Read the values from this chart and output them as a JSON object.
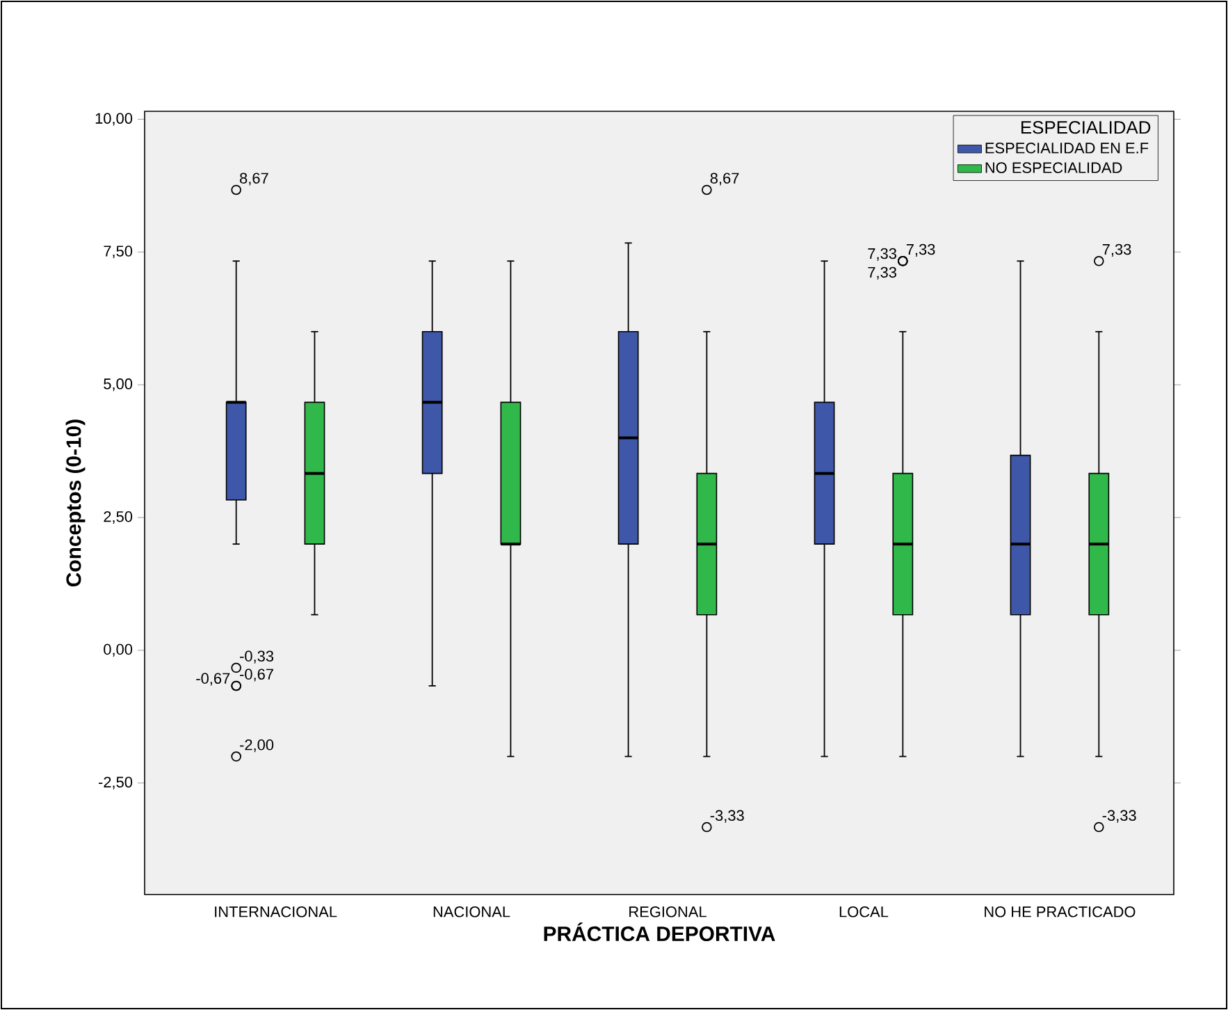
{
  "chart_data": {
    "type": "box",
    "xlabel": "PRÁCTICA DEPORTIVA",
    "ylabel": "Conceptos (0-10)",
    "legend_title": "ESPECIALIDAD",
    "legend": "top right",
    "marker": "circle",
    "categories": [
      "INTERNACIONAL",
      "NACIONAL",
      "REGIONAL",
      "LOCAL",
      "NO HE PRACTICADO"
    ],
    "ylim": [
      -4.6,
      10.15
    ],
    "yticks": [
      {
        "value": -2.5,
        "label": "-2,50"
      },
      {
        "value": 0,
        "label": "0,00"
      },
      {
        "value": 2.5,
        "label": "2,50"
      },
      {
        "value": 5,
        "label": "5,00"
      },
      {
        "value": 7.5,
        "label": "7,50"
      },
      {
        "value": 10,
        "label": "10,00"
      }
    ],
    "series": [
      {
        "name": "ESPECIALIDAD EN E.F",
        "color": "#3f57a8",
        "boxes": [
          {
            "low": 2.0,
            "q1": 2.83,
            "median": 4.67,
            "q3": 4.67,
            "high": 7.33,
            "outliers": [
              8.67,
              -0.33,
              -0.67,
              -0.67,
              -2.0
            ]
          },
          {
            "low": -0.67,
            "q1": 3.33,
            "median": 4.67,
            "q3": 6.0,
            "high": 7.33
          },
          {
            "low": -2.0,
            "q1": 2.0,
            "median": 4.0,
            "q3": 6.0,
            "high": 7.67
          },
          {
            "low": -2.0,
            "q1": 2.0,
            "median": 3.33,
            "q3": 4.67,
            "high": 7.33
          },
          {
            "low": -2.0,
            "q1": 0.67,
            "median": 2.0,
            "q3": 3.67,
            "high": 7.33
          }
        ]
      },
      {
        "name": "NO ESPECIALIDAD",
        "color": "#30b84a",
        "boxes": [
          {
            "low": 0.67,
            "q1": 2.0,
            "median": 3.33,
            "q3": 4.67,
            "high": 6.0
          },
          {
            "low": -2.0,
            "q1": 2.0,
            "median": 2.0,
            "q3": 4.67,
            "high": 7.33
          },
          {
            "low": -2.0,
            "q1": 0.67,
            "median": 2.0,
            "q3": 3.33,
            "high": 6.0,
            "outliers": [
              8.67,
              -3.33
            ]
          },
          {
            "low": -2.0,
            "q1": 0.67,
            "median": 2.0,
            "q3": 3.33,
            "high": 6.0,
            "outliers": [
              7.33,
              7.33,
              7.33
            ]
          },
          {
            "low": -2.0,
            "q1": 0.67,
            "median": 2.0,
            "q3": 3.33,
            "high": 6.0,
            "outliers": [
              7.33,
              -3.33
            ]
          }
        ]
      }
    ],
    "annotations": [
      "8,67",
      "-0,33",
      "-0,67",
      "-0,67",
      "-2,00",
      "8,67",
      "-3,33",
      "7,33",
      "7,33",
      "7,33",
      "7,33",
      "-3,33"
    ]
  }
}
